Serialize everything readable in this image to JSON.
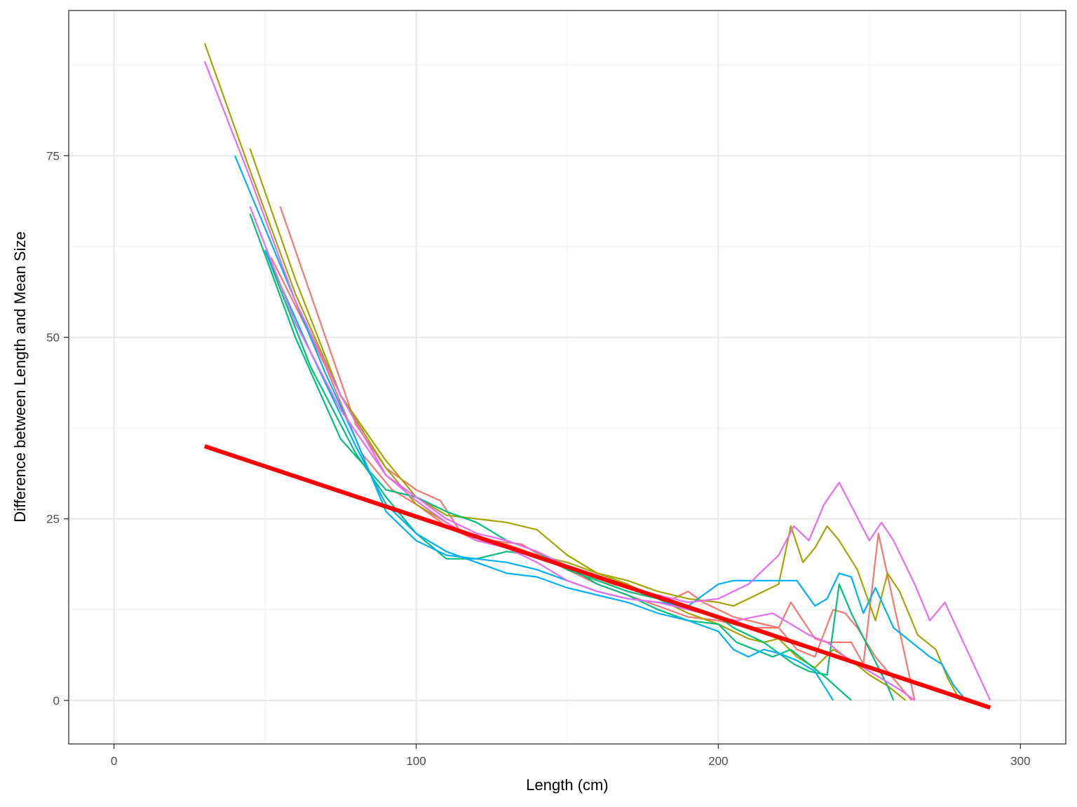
{
  "chart_data": {
    "type": "line",
    "title": "",
    "xlabel": "Length (cm)",
    "ylabel": "Difference between Length and Mean Size",
    "xlim": [
      -15,
      315
    ],
    "ylim": [
      -6,
      95
    ],
    "x_ticks": [
      0,
      100,
      200,
      300
    ],
    "x_tick_labels": [
      "0",
      "100",
      "200",
      "300"
    ],
    "y_ticks": [
      0,
      25,
      50,
      75
    ],
    "y_tick_labels": [
      "0",
      "25",
      "50",
      "75"
    ],
    "grid": true,
    "legend": "none",
    "series": [
      {
        "color": "#F8766D",
        "x": [
          55,
          70,
          80,
          90,
          100,
          108,
          115,
          125,
          135,
          145,
          155,
          165,
          175,
          185,
          190,
          195,
          200,
          205,
          210,
          215,
          220,
          224,
          228,
          232,
          236,
          240,
          244,
          248,
          253,
          265
        ],
        "y": [
          68,
          50,
          38,
          32,
          29,
          27.5,
          23,
          22,
          21.5,
          19,
          17.5,
          16,
          15,
          14,
          15,
          13.5,
          12.5,
          11.5,
          11,
          10.5,
          10,
          13.5,
          11,
          8.5,
          8,
          8,
          8,
          5,
          23,
          0
        ]
      },
      {
        "color": "#F8766D",
        "x": [
          52,
          70,
          82,
          92,
          100,
          110,
          120,
          130,
          140,
          150,
          160,
          170,
          180,
          190,
          200,
          210,
          220,
          226,
          232,
          238,
          242,
          246,
          252,
          258,
          264
        ],
        "y": [
          61,
          46,
          34,
          29,
          27,
          24,
          22,
          21.5,
          20,
          18,
          16,
          14.5,
          13,
          11.5,
          11,
          10,
          10,
          7,
          6,
          12.5,
          12,
          10,
          6,
          3,
          0
        ]
      },
      {
        "color": "#A3A500",
        "x": [
          30,
          45,
          60,
          75,
          90,
          100,
          110,
          120,
          130,
          140,
          150,
          160,
          170,
          180,
          190,
          200,
          205,
          210,
          215,
          220,
          224,
          228,
          232,
          236,
          240,
          246,
          252,
          256,
          260,
          266,
          272,
          276,
          280
        ],
        "y": [
          90.5,
          73,
          56,
          42,
          33,
          28,
          25.5,
          25,
          24.5,
          23.5,
          20,
          17.5,
          16.5,
          15,
          14,
          13.5,
          13,
          14,
          15,
          16,
          24,
          19,
          21,
          24,
          22,
          18,
          11,
          17.5,
          15,
          9,
          7,
          3,
          0
        ]
      },
      {
        "color": "#A3A500",
        "x": [
          45,
          60,
          75,
          90,
          100,
          110,
          120,
          130,
          140,
          150,
          160,
          170,
          180,
          190,
          200,
          210,
          215,
          220,
          226,
          232,
          238,
          244,
          250,
          256,
          262
        ],
        "y": [
          76,
          58,
          42,
          32,
          27,
          24.5,
          22,
          21,
          20,
          19,
          17.5,
          16,
          14,
          12,
          10.5,
          8.5,
          8,
          8.5,
          6,
          4.5,
          7,
          5.5,
          3.5,
          2,
          0
        ]
      },
      {
        "color": "#00BF7D",
        "x": [
          45,
          60,
          75,
          90,
          100,
          110,
          120,
          130,
          140,
          150,
          160,
          170,
          180,
          190,
          200,
          205,
          210,
          215,
          220,
          225,
          230,
          236,
          240,
          244,
          250,
          256,
          258
        ],
        "y": [
          67,
          50,
          36,
          29,
          28,
          26,
          24.5,
          22,
          20.5,
          18,
          16.5,
          15,
          14,
          12.5,
          11.5,
          10,
          9,
          8,
          6.5,
          5,
          4,
          3.5,
          16,
          12,
          7,
          2,
          0
        ]
      },
      {
        "color": "#00BF7D",
        "x": [
          50,
          65,
          80,
          90,
          100,
          110,
          120,
          130,
          140,
          150,
          160,
          170,
          180,
          190,
          200,
          206,
          212,
          218,
          224,
          230,
          236,
          240,
          244
        ],
        "y": [
          62,
          46,
          34,
          28,
          23,
          19.5,
          19.5,
          20.5,
          20,
          18.5,
          16,
          14.5,
          12.5,
          11,
          10.5,
          8,
          7,
          6,
          7,
          5,
          3,
          1.5,
          0
        ]
      },
      {
        "color": "#00B0F6",
        "x": [
          40,
          55,
          70,
          80,
          90,
          100,
          110,
          120,
          130,
          140,
          150,
          160,
          170,
          180,
          190,
          200,
          205,
          210,
          215,
          220,
          226,
          232,
          236,
          240,
          244,
          248,
          252,
          258,
          264,
          270,
          274,
          278,
          282
        ],
        "y": [
          75,
          60,
          45,
          36,
          26,
          22,
          20,
          19.5,
          19,
          18,
          16.5,
          15,
          14,
          13.5,
          13,
          16,
          16.5,
          16.5,
          16.5,
          16.5,
          16.5,
          13,
          14,
          17.5,
          17,
          12,
          15.5,
          10,
          8,
          6,
          5,
          2,
          0
        ]
      },
      {
        "color": "#00B0F6",
        "x": [
          50,
          65,
          80,
          90,
          100,
          110,
          120,
          130,
          140,
          150,
          160,
          170,
          180,
          190,
          200,
          205,
          210,
          215,
          220,
          226,
          232,
          238
        ],
        "y": [
          62,
          48,
          35,
          27,
          23,
          20.5,
          19,
          17.5,
          17,
          15.5,
          14.5,
          13.5,
          12,
          11,
          9.5,
          7,
          6,
          7,
          6.5,
          5.5,
          4,
          0
        ]
      },
      {
        "color": "#E76BF3",
        "x": [
          30,
          45,
          60,
          75,
          90,
          100,
          110,
          120,
          130,
          140,
          150,
          160,
          170,
          180,
          190,
          200,
          205,
          210,
          215,
          220,
          225,
          230,
          235,
          240,
          245,
          250,
          254,
          258,
          265,
          270,
          275,
          290
        ],
        "y": [
          88,
          72,
          55,
          42,
          31,
          28,
          25,
          23,
          22,
          20.5,
          18.5,
          17,
          15.5,
          14.5,
          13.5,
          14,
          15,
          16,
          18,
          20,
          24,
          22,
          27,
          30,
          26,
          22,
          24.5,
          22,
          16,
          11,
          13.5,
          0
        ]
      },
      {
        "color": "#E76BF3",
        "x": [
          45,
          60,
          75,
          90,
          100,
          110,
          120,
          130,
          140,
          150,
          160,
          170,
          180,
          190,
          200,
          206,
          212,
          218,
          224,
          230,
          236,
          242,
          248,
          254,
          260,
          265
        ],
        "y": [
          68,
          52,
          40,
          31,
          27.5,
          24.5,
          22,
          21,
          19,
          16.5,
          15,
          14,
          13.5,
          12.5,
          11.5,
          11,
          11.5,
          12,
          10.5,
          9,
          8,
          6,
          4.5,
          3,
          1.5,
          0
        ]
      }
    ],
    "trend_line": {
      "color": "#FF0000",
      "x": [
        30,
        290
      ],
      "y": [
        35,
        -1
      ]
    }
  }
}
